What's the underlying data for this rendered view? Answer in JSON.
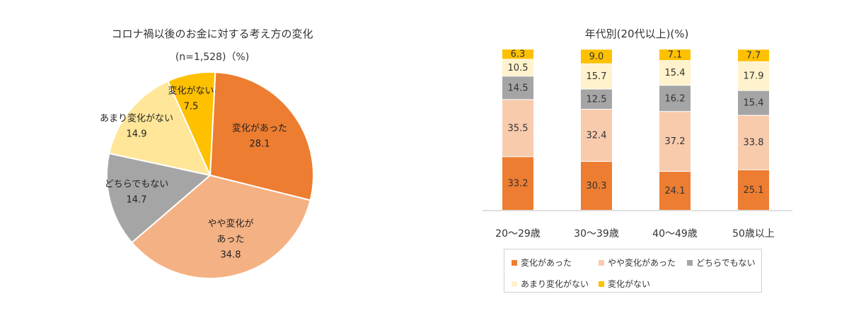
{
  "chart_data": [
    {
      "type": "pie",
      "title": "コロナ禍以後のお金に対する考え方の変化",
      "subtitle": "(n=1,528)（%)",
      "slices": [
        {
          "name": "変化があった",
          "value": 28.1,
          "color": "#ED7D31",
          "text_color": "#222222"
        },
        {
          "name": "やや変化があった",
          "value": 34.8,
          "color": "#F4B183",
          "text_color": "#222222"
        },
        {
          "name": "どちらでもない",
          "value": 14.7,
          "color": "#A5A5A5",
          "text_color": "#222222"
        },
        {
          "name": "あまり変化がない",
          "value": 14.9,
          "color": "#FFE699",
          "text_color": "#222222"
        },
        {
          "name": "変化がない",
          "value": 7.5,
          "color": "#FFC000",
          "text_color": "#222222"
        }
      ],
      "label_text": [
        {
          "lines": [
            "変化があった",
            "28.1"
          ]
        },
        {
          "lines": [
            "やや変化が",
            "あった",
            "34.8"
          ]
        },
        {
          "lines": [
            "どちらでもない",
            "14.7"
          ]
        },
        {
          "lines": [
            "あまり変化がない",
            "14.9"
          ]
        },
        {
          "lines": [
            "変化がない",
            "7.5"
          ]
        }
      ]
    },
    {
      "type": "bar",
      "stacked": true,
      "orientation": "vertical",
      "title": "年代別(20代以上)(%)",
      "categories": [
        "20～29歳",
        "30～39歳",
        "40～49歳",
        "50歳以上"
      ],
      "series": [
        {
          "name": "変化があった",
          "values": [
            33.2,
            30.3,
            24.1,
            25.1
          ],
          "color": "#ED7D31",
          "text_color": "#333333"
        },
        {
          "name": "やや変化があった",
          "values": [
            35.5,
            32.4,
            37.2,
            33.8
          ],
          "color": "#F8CBAD",
          "text_color": "#333333"
        },
        {
          "name": "どちらでもない",
          "values": [
            14.5,
            12.5,
            16.2,
            15.4
          ],
          "color": "#A5A5A5",
          "text_color": "#333333"
        },
        {
          "name": "あまり変化がない",
          "values": [
            10.5,
            15.7,
            15.4,
            17.9
          ],
          "color": "#FFF2CC",
          "text_color": "#333333"
        },
        {
          "name": "変化がない",
          "values": [
            6.3,
            9.0,
            7.1,
            7.7
          ],
          "color": "#FFC000",
          "text_color": "#333333"
        }
      ],
      "value_labels": [
        [
          "33.2",
          "30.3",
          "24.1",
          "25.1"
        ],
        [
          "35.5",
          "32.4",
          "37.2",
          "33.8"
        ],
        [
          "14.5",
          "12.5",
          "16.2",
          "15.4"
        ],
        [
          "10.5",
          "15.7",
          "15.4",
          "17.9"
        ],
        [
          "6.3",
          "9.0",
          "7.1",
          "7.7"
        ]
      ],
      "ylim": [
        0,
        100
      ],
      "grid": false,
      "legend_position": "bottom"
    }
  ]
}
